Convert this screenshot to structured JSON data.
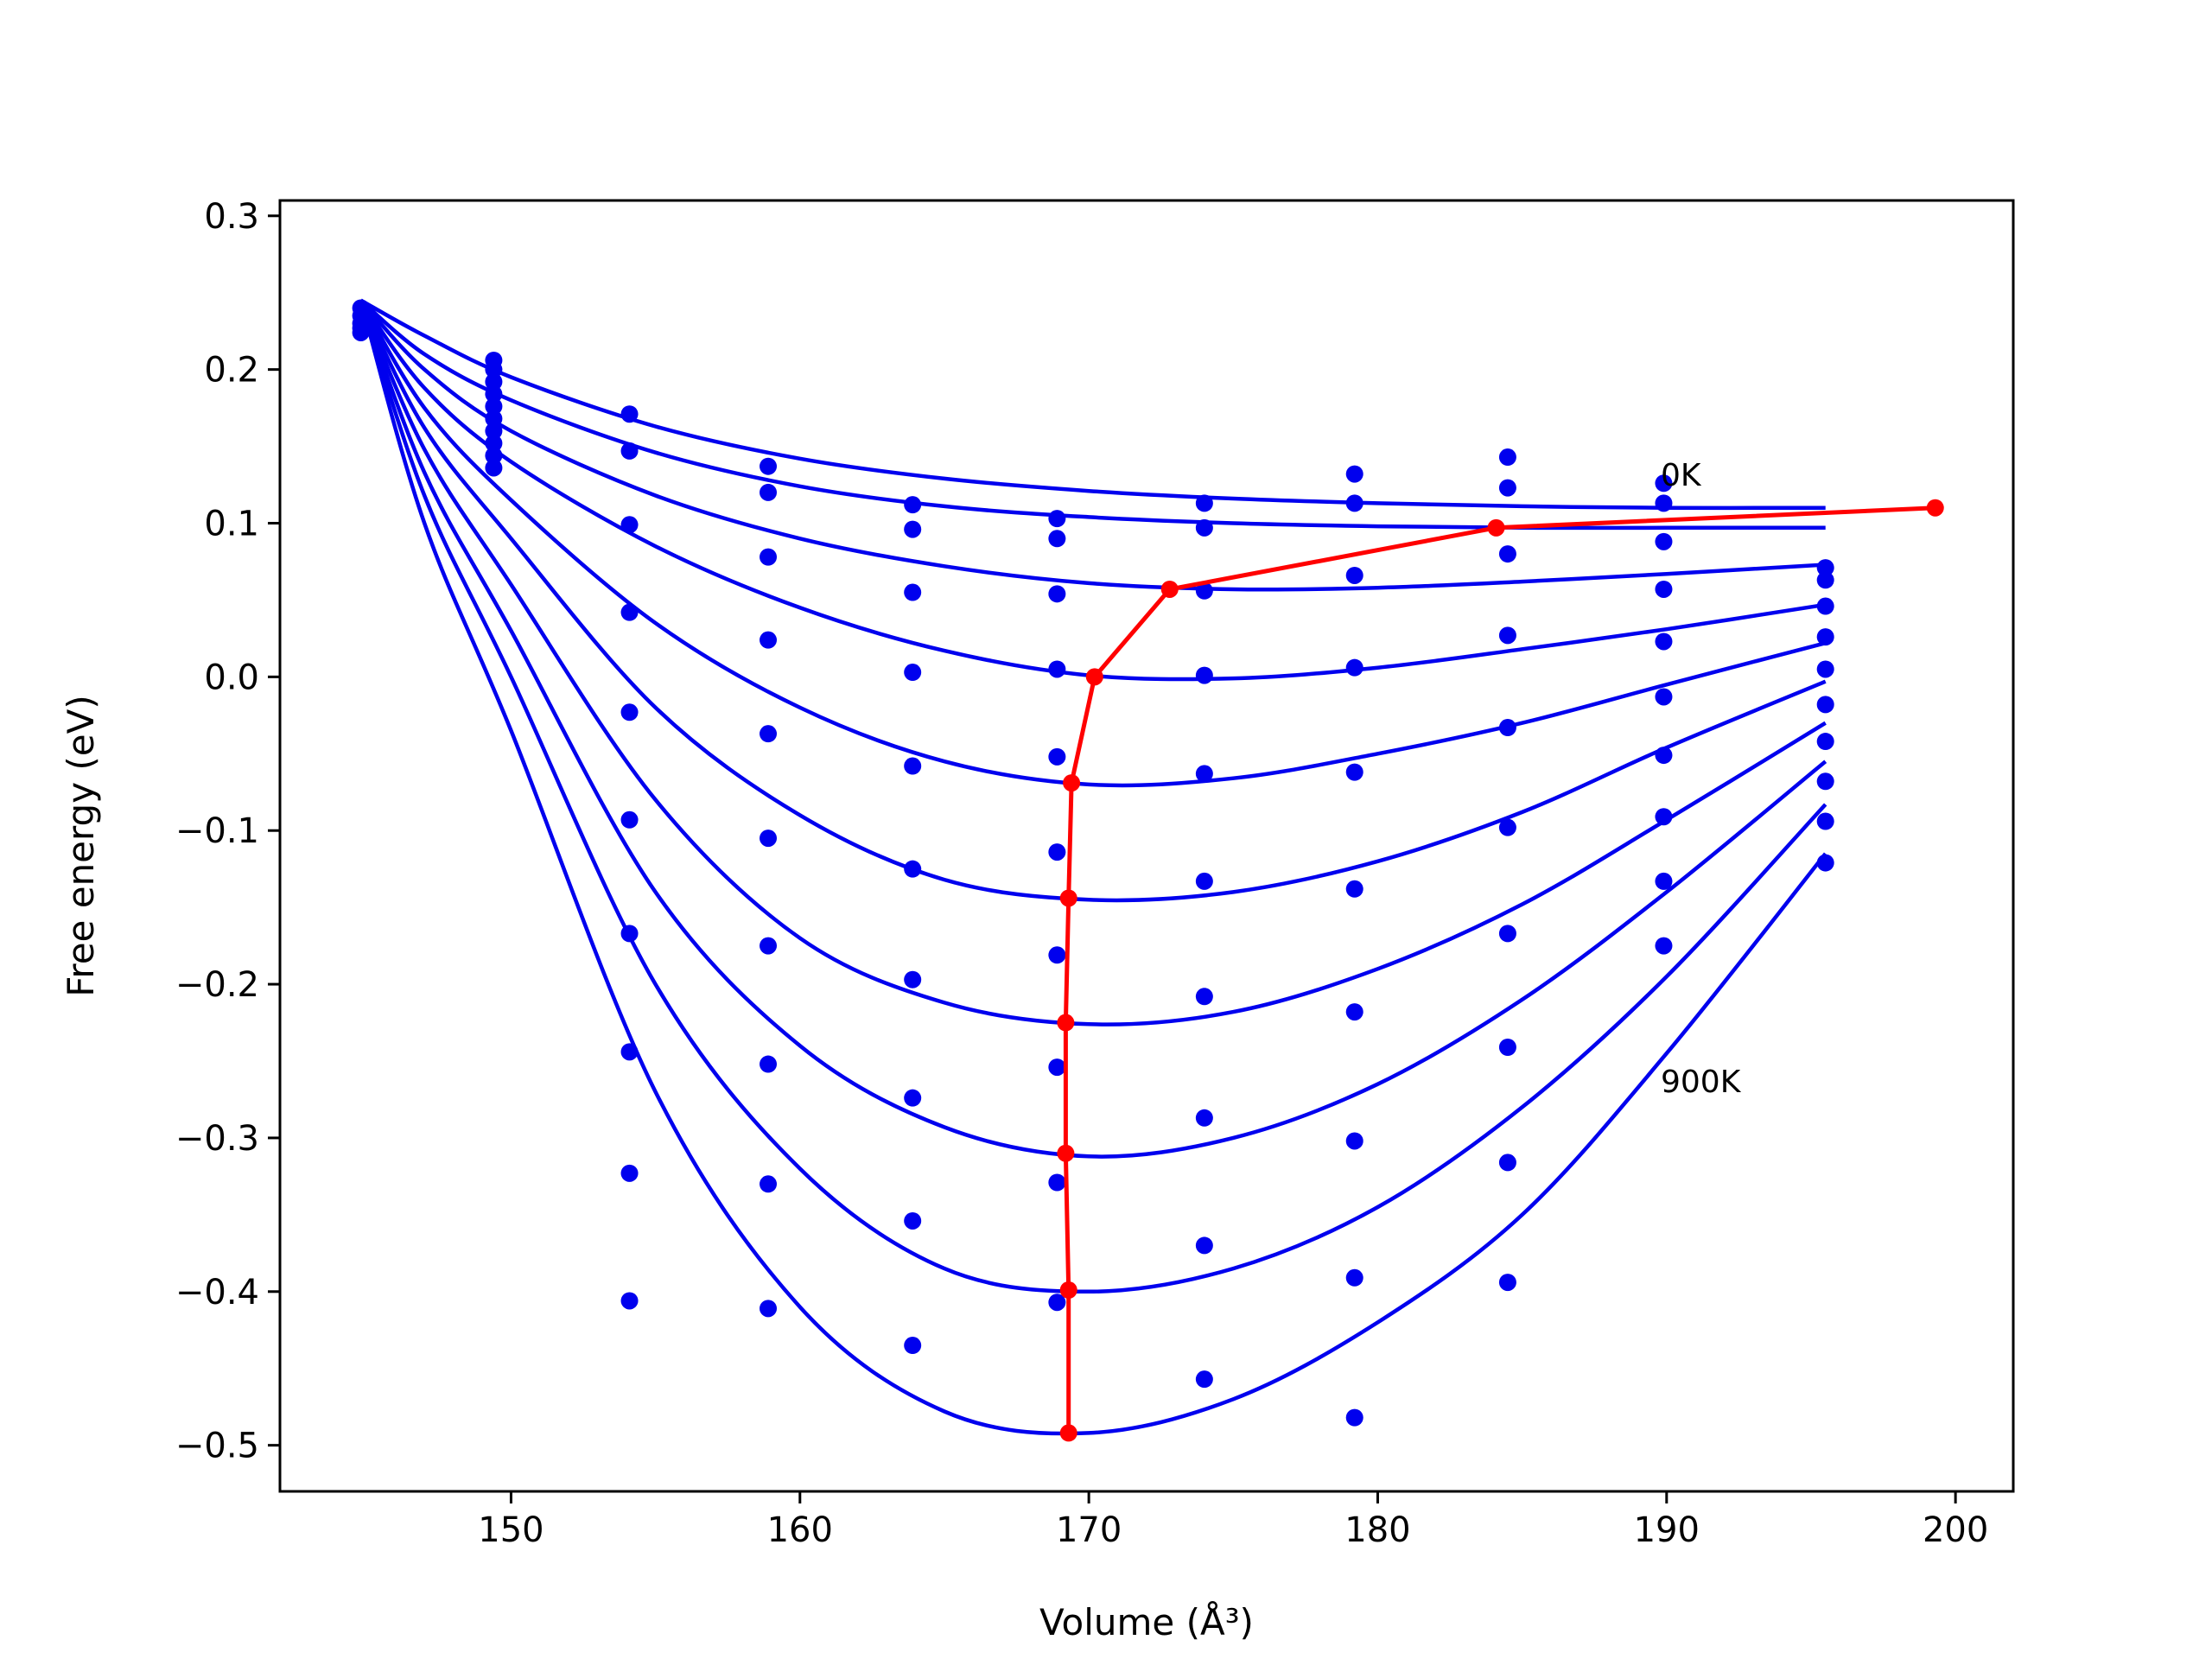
{
  "chart_data": {
    "type": "line",
    "xlabel": "Volume (Å³)",
    "ylabel": "Free energy (eV)",
    "xlim": [
      142,
      202
    ],
    "ylim": [
      -0.53,
      0.31
    ],
    "xticks": [
      150,
      160,
      170,
      180,
      190,
      200
    ],
    "xtick_labels": [
      "150",
      "160",
      "170",
      "180",
      "190",
      "200"
    ],
    "yticks": [
      0.3,
      0.2,
      0.1,
      0.0,
      -0.1,
      -0.2,
      -0.3,
      -0.4,
      -0.5
    ],
    "ytick_labels": [
      "0.3",
      "0.2",
      "0.1",
      "0.0",
      "−0.1",
      "−0.2",
      "−0.3",
      "−0.4",
      "−0.5"
    ],
    "grid": false,
    "legend": "none",
    "annotations": [
      {
        "text": "0K",
        "x": 190,
        "y": 0.125
      },
      {
        "text": "900K",
        "x": 190,
        "y": -0.27
      }
    ],
    "colors": {
      "fit_curves": "#0000ee",
      "data_points": "#0000ee",
      "minimum_path": "#ff0000"
    },
    "fit_curves": [
      {
        "x": [
          144.8,
          147,
          150,
          155,
          160,
          165,
          170,
          175,
          180,
          185,
          190,
          195.5
        ],
        "y": [
          0.245,
          0.222,
          0.195,
          0.163,
          0.142,
          0.129,
          0.121,
          0.116,
          0.113,
          0.111,
          0.11,
          0.11
        ]
      },
      {
        "x": [
          144.8,
          147,
          150,
          155,
          160,
          165,
          170,
          175,
          180,
          185,
          190,
          195.5
        ],
        "y": [
          0.245,
          0.21,
          0.18,
          0.146,
          0.124,
          0.111,
          0.104,
          0.1,
          0.098,
          0.097,
          0.097,
          0.097
        ]
      },
      {
        "x": [
          144.8,
          147,
          150,
          155,
          160,
          165,
          170,
          175,
          180,
          185,
          190,
          195.5
        ],
        "y": [
          0.245,
          0.2,
          0.16,
          0.118,
          0.09,
          0.072,
          0.061,
          0.057,
          0.058,
          0.062,
          0.067,
          0.073
        ]
      },
      {
        "x": [
          144.8,
          147,
          150,
          155,
          160,
          165,
          170,
          175,
          180,
          185,
          190,
          195.5
        ],
        "y": [
          0.245,
          0.188,
          0.14,
          0.085,
          0.045,
          0.017,
          0.001,
          -0.001,
          0.006,
          0.018,
          0.031,
          0.047
        ]
      },
      {
        "x": [
          144.8,
          147,
          150,
          155,
          160,
          165,
          170,
          175,
          180,
          185,
          190,
          195.5
        ],
        "y": [
          0.245,
          0.175,
          0.115,
          0.035,
          -0.02,
          -0.055,
          -0.07,
          -0.066,
          -0.05,
          -0.03,
          -0.005,
          0.022
        ]
      },
      {
        "x": [
          144.8,
          147,
          150,
          155,
          160,
          165,
          170,
          175,
          180,
          185,
          190,
          195.5
        ],
        "y": [
          0.245,
          0.162,
          0.09,
          -0.02,
          -0.09,
          -0.132,
          -0.145,
          -0.14,
          -0.12,
          -0.088,
          -0.046,
          -0.003
        ]
      },
      {
        "x": [
          144.8,
          147,
          150,
          155,
          160,
          165,
          170,
          175,
          180,
          185,
          190,
          195.5
        ],
        "y": [
          0.245,
          0.148,
          0.06,
          -0.08,
          -0.17,
          -0.212,
          -0.226,
          -0.218,
          -0.19,
          -0.148,
          -0.093,
          -0.03
        ]
      },
      {
        "x": [
          144.8,
          147,
          150,
          155,
          160,
          165,
          170,
          175,
          180,
          185,
          190,
          195.5
        ],
        "y": [
          0.245,
          0.133,
          0.03,
          -0.14,
          -0.24,
          -0.293,
          -0.312,
          -0.3,
          -0.265,
          -0.21,
          -0.14,
          -0.055
        ]
      },
      {
        "x": [
          144.8,
          147,
          150,
          155,
          160,
          165,
          170,
          175,
          180,
          185,
          190,
          195.5
        ],
        "y": [
          0.245,
          0.118,
          0.0,
          -0.2,
          -0.32,
          -0.385,
          -0.4,
          -0.385,
          -0.345,
          -0.28,
          -0.195,
          -0.083
        ]
      },
      {
        "x": [
          144.8,
          147,
          150,
          155,
          160,
          165,
          170,
          175,
          180,
          185,
          190,
          195.5
        ],
        "y": [
          0.245,
          0.1,
          -0.035,
          -0.27,
          -0.41,
          -0.478,
          -0.492,
          -0.47,
          -0.42,
          -0.35,
          -0.245,
          -0.115
        ]
      }
    ],
    "data_points": {
      "x": [
        144.8,
        144.8,
        144.8,
        144.8,
        144.8,
        149.4,
        149.4,
        149.4,
        149.4,
        149.4,
        149.4,
        149.4,
        149.4,
        149.4,
        149.4,
        154.1,
        154.1,
        154.1,
        154.1,
        154.1,
        154.1,
        154.1,
        154.1,
        154.1,
        154.1,
        158.9,
        158.9,
        158.9,
        158.9,
        158.9,
        158.9,
        158.9,
        158.9,
        158.9,
        158.9,
        163.9,
        163.9,
        163.9,
        163.9,
        163.9,
        163.9,
        163.9,
        163.9,
        163.9,
        163.9,
        168.9,
        168.9,
        168.9,
        168.9,
        168.9,
        168.9,
        168.9,
        168.9,
        168.9,
        168.9,
        174.0,
        174.0,
        174.0,
        174.0,
        174.0,
        174.0,
        174.0,
        174.0,
        174.0,
        174.0,
        179.2,
        179.2,
        179.2,
        179.2,
        179.2,
        179.2,
        179.2,
        179.2,
        179.2,
        179.2,
        184.5,
        184.5,
        184.5,
        184.5,
        184.5,
        184.5,
        184.5,
        184.5,
        184.5,
        184.5,
        189.9,
        189.9,
        189.9,
        189.9,
        189.9,
        189.9,
        189.9,
        189.9,
        189.9,
        189.9,
        195.5,
        195.5,
        195.5,
        195.5,
        195.5,
        195.5,
        195.5,
        195.5,
        195.5,
        195.5
      ],
      "y": [
        0.24,
        0.235,
        0.23,
        0.227,
        0.224,
        0.206,
        0.2,
        0.192,
        0.184,
        0.176,
        0.168,
        0.16,
        0.152,
        0.144,
        0.136,
        0.171,
        0.147,
        0.099,
        0.042,
        -0.023,
        -0.093,
        -0.167,
        -0.244,
        -0.323,
        -0.406,
        0.137,
        0.12,
        0.078,
        0.024,
        -0.037,
        -0.105,
        -0.175,
        -0.252,
        -0.33,
        -0.411,
        0.112,
        0.096,
        0.055,
        0.003,
        -0.058,
        -0.125,
        -0.197,
        -0.274,
        -0.354,
        -0.435,
        0.103,
        0.09,
        0.054,
        0.005,
        -0.052,
        -0.114,
        -0.181,
        -0.254,
        -0.329,
        -0.407,
        0.113,
        0.097,
        0.056,
        0.001,
        -0.063,
        -0.133,
        -0.208,
        -0.287,
        -0.37,
        -0.457,
        0.132,
        0.113,
        0.066,
        0.006,
        -0.062,
        -0.138,
        -0.218,
        -0.302,
        -0.391,
        -0.482,
        0.143,
        0.123,
        0.08,
        0.027,
        -0.033,
        -0.098,
        -0.167,
        -0.241,
        -0.316,
        -0.394,
        0.126,
        0.113,
        0.088,
        0.057,
        0.023,
        -0.013,
        -0.051,
        -0.091,
        -0.133,
        -0.175,
        0.071,
        0.063,
        0.046,
        0.026,
        0.005,
        -0.018,
        -0.042,
        -0.068,
        -0.094,
        -0.121
      ]
    },
    "minimum_path": {
      "name": "",
      "x": [
        199.3,
        184.1,
        172.8,
        170.2,
        169.4,
        169.3,
        169.2,
        169.2,
        169.3,
        169.3
      ],
      "y": [
        0.11,
        0.097,
        0.057,
        0.0,
        -0.069,
        -0.144,
        -0.225,
        -0.31,
        -0.399,
        -0.492
      ]
    }
  }
}
